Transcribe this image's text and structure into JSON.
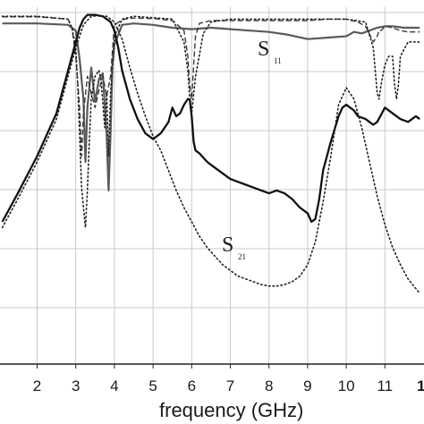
{
  "chart_data": {
    "type": "line",
    "xlabel": "frequency (GHz)",
    "xlim": [
      1.1,
      11.9
    ],
    "ylim": [
      -1,
      0
    ],
    "x_ticks": [
      "2",
      "3",
      "4",
      "5",
      "6",
      "7",
      "8",
      "9",
      "10",
      "11"
    ],
    "x_tick_partial": "1",
    "grid": true,
    "annotations": [
      {
        "id": "s11",
        "main": "S",
        "sub": "11"
      },
      {
        "id": "s21",
        "main": "S",
        "sub": "21"
      }
    ],
    "series": [
      {
        "style": "solid-gray",
        "x": [
          1.1,
          2.0,
          2.8,
          3.0,
          3.1,
          3.2,
          3.25,
          3.3,
          3.4,
          3.5,
          3.6,
          3.7,
          3.8,
          3.85,
          3.9,
          3.95,
          4.0,
          4.2,
          4.5,
          5.0,
          5.5,
          6.0,
          6.5,
          7.0,
          7.5,
          8.0,
          8.5,
          9.0,
          9.5,
          10.0,
          10.2,
          10.4,
          10.6,
          10.8,
          11.0,
          11.2,
          11.5,
          11.9
        ],
        "y": [
          -0.035,
          -0.035,
          -0.04,
          -0.06,
          -0.16,
          -0.3,
          -0.52,
          -0.33,
          -0.19,
          -0.31,
          -0.23,
          -0.21,
          -0.43,
          -0.62,
          -0.42,
          -0.18,
          -0.11,
          -0.04,
          -0.035,
          -0.04,
          -0.05,
          -0.055,
          -0.05,
          -0.055,
          -0.06,
          -0.065,
          -0.075,
          -0.09,
          -0.085,
          -0.08,
          -0.065,
          -0.07,
          -0.06,
          -0.05,
          -0.045,
          -0.045,
          -0.05,
          -0.05
        ]
      },
      {
        "style": "dashed",
        "x": [
          1.1,
          2.0,
          2.8,
          2.9,
          3.0,
          3.1,
          3.15,
          3.2,
          3.3,
          3.4,
          3.5,
          3.6,
          3.7,
          3.8,
          3.9,
          4.0,
          4.2,
          4.5,
          5.0,
          5.5,
          5.8,
          5.9,
          5.95,
          6.0,
          6.05,
          6.1,
          6.2,
          6.5,
          7.0,
          7.5,
          8.0,
          8.5,
          9.0,
          9.5,
          10.0,
          10.3,
          10.5,
          10.7,
          10.8,
          10.85,
          10.9,
          11.0,
          11.2,
          11.4,
          11.6,
          11.9
        ],
        "y": [
          -0.012,
          -0.012,
          -0.02,
          -0.05,
          -0.15,
          -0.33,
          -0.5,
          -0.35,
          -0.22,
          -0.28,
          -0.33,
          -0.27,
          -0.22,
          -0.29,
          -0.22,
          -0.04,
          -0.022,
          -0.016,
          -0.018,
          -0.025,
          -0.06,
          -0.15,
          -0.25,
          -0.3,
          -0.18,
          -0.08,
          -0.035,
          -0.025,
          -0.025,
          -0.025,
          -0.025,
          -0.025,
          -0.025,
          -0.02,
          -0.02,
          -0.03,
          -0.045,
          -0.1,
          -0.08,
          -0.06,
          -0.06,
          -0.045,
          -0.05,
          -0.06,
          -0.065,
          -0.065
        ]
      },
      {
        "style": "dotted",
        "x": [
          1.1,
          2.0,
          2.8,
          2.9,
          3.0,
          3.05,
          3.1,
          3.15,
          3.2,
          3.25,
          3.3,
          3.35,
          3.4,
          3.5,
          3.6,
          3.65,
          3.7,
          3.75,
          3.8,
          3.85,
          3.9,
          4.0,
          4.2,
          4.5,
          5.0,
          5.5,
          5.8,
          5.9,
          5.95,
          6.0,
          6.1,
          6.3,
          6.5,
          7.0,
          7.5,
          8.0,
          8.5,
          9.0,
          9.5,
          10.0,
          10.5,
          10.7,
          10.8,
          10.85,
          10.9,
          11.0,
          11.1,
          11.2,
          11.25,
          11.3,
          11.35,
          11.4,
          11.6,
          11.9
        ],
        "y": [
          -0.01,
          -0.01,
          -0.02,
          -0.05,
          -0.12,
          -0.25,
          -0.42,
          -0.61,
          -0.68,
          -0.75,
          -0.62,
          -0.45,
          -0.3,
          -0.22,
          -0.2,
          -0.23,
          -0.31,
          -0.4,
          -0.28,
          -0.5,
          -0.28,
          -0.08,
          -0.02,
          -0.01,
          -0.015,
          -0.02,
          -0.1,
          -0.2,
          -0.3,
          -0.35,
          -0.22,
          -0.07,
          -0.03,
          -0.02,
          -0.02,
          -0.02,
          -0.02,
          -0.02,
          -0.02,
          -0.02,
          -0.03,
          -0.12,
          -0.28,
          -0.3,
          -0.25,
          -0.18,
          -0.15,
          -0.15,
          -0.25,
          -0.3,
          -0.25,
          -0.15,
          -0.1,
          -0.1
        ]
      },
      {
        "style": "solid-black",
        "x": [
          1.1,
          1.5,
          2.0,
          2.5,
          2.8,
          3.0,
          3.1,
          3.2,
          3.3,
          3.5,
          3.7,
          3.9,
          4.0,
          4.1,
          4.2,
          4.4,
          4.6,
          4.8,
          5.0,
          5.2,
          5.4,
          5.5,
          5.6,
          5.7,
          5.8,
          5.9,
          5.95,
          6.0,
          6.05,
          6.1,
          6.2,
          6.4,
          6.6,
          6.8,
          7.0,
          7.2,
          7.4,
          7.6,
          7.8,
          8.0,
          8.2,
          8.4,
          8.6,
          8.8,
          9.0,
          9.1,
          9.2,
          9.3,
          9.4,
          9.6,
          9.8,
          9.9,
          10.0,
          10.1,
          10.2,
          10.3,
          10.5,
          10.6,
          10.7,
          10.8,
          11.0,
          11.2,
          11.4,
          11.6,
          11.8,
          11.9
        ],
        "y": [
          -0.73,
          -0.63,
          -0.5,
          -0.35,
          -0.2,
          -0.1,
          -0.05,
          -0.02,
          -0.005,
          -0.005,
          -0.01,
          -0.03,
          -0.06,
          -0.12,
          -0.2,
          -0.3,
          -0.37,
          -0.42,
          -0.44,
          -0.42,
          -0.38,
          -0.33,
          -0.36,
          -0.35,
          -0.32,
          -0.3,
          -0.3,
          -0.36,
          -0.45,
          -0.48,
          -0.49,
          -0.52,
          -0.54,
          -0.56,
          -0.58,
          -0.59,
          -0.6,
          -0.61,
          -0.62,
          -0.63,
          -0.62,
          -0.63,
          -0.65,
          -0.68,
          -0.7,
          -0.73,
          -0.72,
          -0.65,
          -0.55,
          -0.45,
          -0.36,
          -0.33,
          -0.32,
          -0.33,
          -0.34,
          -0.36,
          -0.37,
          -0.38,
          -0.39,
          -0.38,
          -0.33,
          -0.35,
          -0.37,
          -0.38,
          -0.36,
          -0.37
        ]
      },
      {
        "style": "dotted",
        "x": [
          1.1,
          1.5,
          2.0,
          2.5,
          2.8,
          3.0,
          3.2,
          3.4,
          3.6,
          3.8,
          4.0,
          4.2,
          4.4,
          4.6,
          4.8,
          5.0,
          5.2,
          5.4,
          5.6,
          5.8,
          6.0,
          6.2,
          6.4,
          6.6,
          6.8,
          7.0,
          7.2,
          7.4,
          7.6,
          7.8,
          8.0,
          8.2,
          8.4,
          8.6,
          8.8,
          9.0,
          9.2,
          9.4,
          9.6,
          9.8,
          10.0,
          10.2,
          10.4,
          10.6,
          10.8,
          11.0,
          11.2,
          11.4,
          11.6,
          11.9
        ],
        "y": [
          -0.75,
          -0.65,
          -0.52,
          -0.37,
          -0.22,
          -0.12,
          -0.04,
          -0.01,
          -0.008,
          -0.01,
          -0.03,
          -0.09,
          -0.19,
          -0.28,
          -0.36,
          -0.43,
          -0.48,
          -0.55,
          -0.62,
          -0.68,
          -0.73,
          -0.78,
          -0.82,
          -0.85,
          -0.88,
          -0.9,
          -0.92,
          -0.93,
          -0.94,
          -0.95,
          -0.955,
          -0.955,
          -0.95,
          -0.94,
          -0.92,
          -0.88,
          -0.8,
          -0.66,
          -0.5,
          -0.32,
          -0.26,
          -0.3,
          -0.4,
          -0.52,
          -0.64,
          -0.74,
          -0.82,
          -0.88,
          -0.93,
          -0.98
        ]
      }
    ]
  }
}
